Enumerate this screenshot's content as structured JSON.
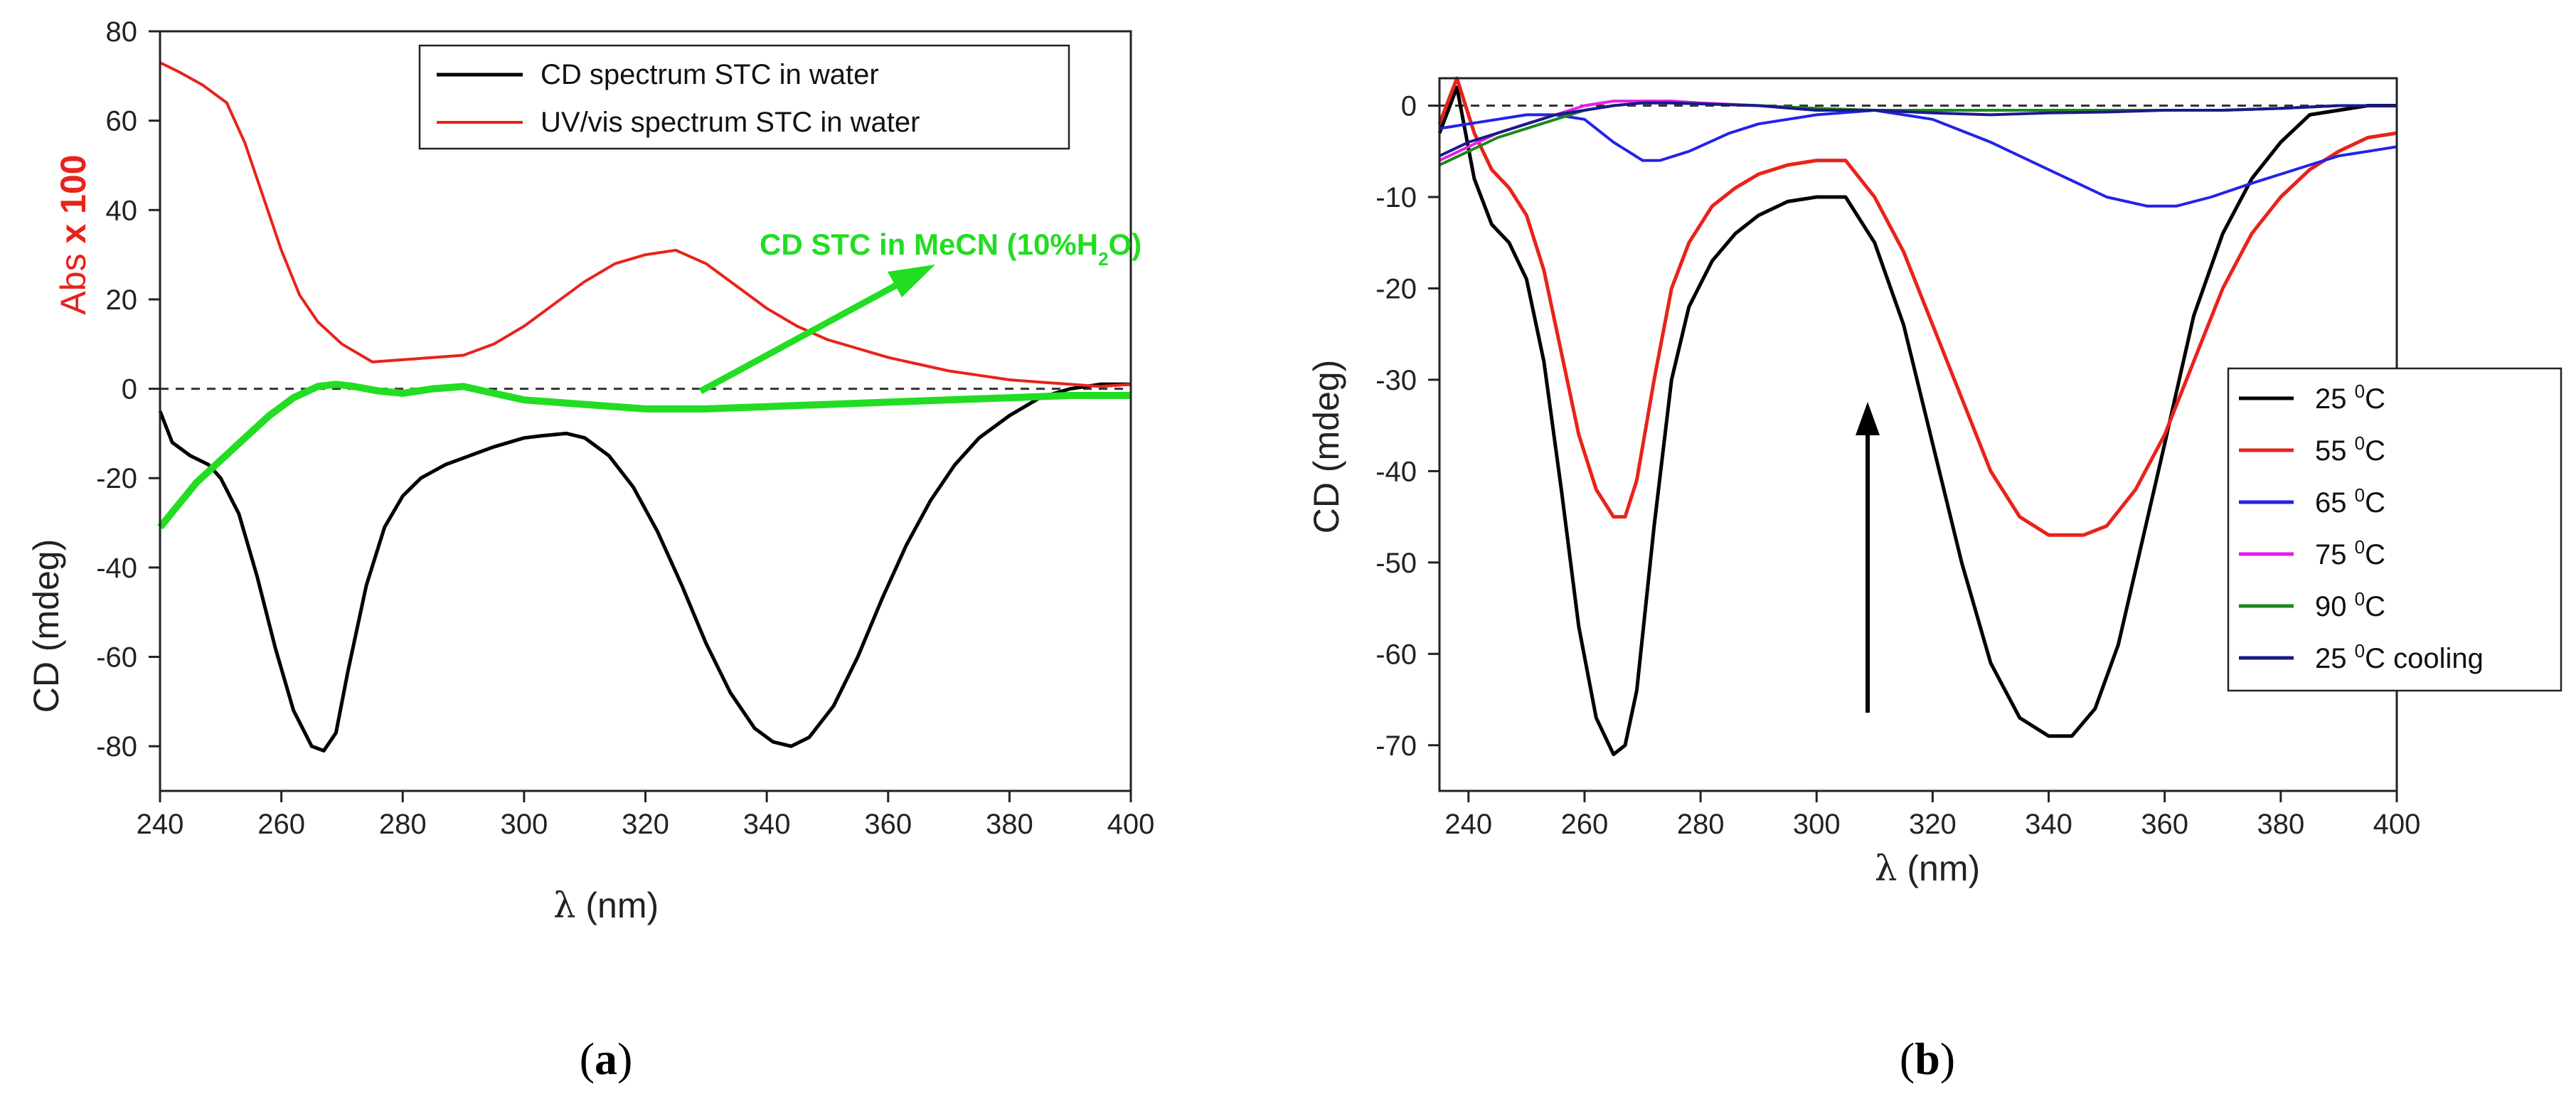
{
  "chart_data": [
    {
      "type": "line",
      "panel": "a",
      "panel_label_open": "(",
      "panel_label_letter": "a",
      "panel_label_close": ")",
      "xlabel_greek": "λ",
      "xlabel_unit": " (nm)",
      "ylabel_bottom": "CD (mdeg)",
      "ylabel_top_prefix": "Abs ",
      "ylabel_top_suffix": "x 100",
      "xlim": [
        240,
        400
      ],
      "ylim": [
        -90,
        80
      ],
      "xticks": [
        "240",
        "260",
        "280",
        "300",
        "320",
        "340",
        "360",
        "380",
        "400"
      ],
      "yticks": [
        "80",
        "60",
        "40",
        "20",
        "0",
        "-20",
        "-40",
        "-60",
        "-80"
      ],
      "legend_position": "top-right",
      "annotation": {
        "text_before": "CD STC in MeCN (10%H",
        "text_sub": "2",
        "text_after": "O)",
        "color": "#22dd22"
      },
      "series": [
        {
          "name": "CD spectrum STC in water",
          "color": "#000000",
          "x": [
            240,
            242,
            245,
            248,
            250,
            253,
            256,
            259,
            262,
            265,
            267,
            269,
            271,
            274,
            277,
            280,
            283,
            287,
            291,
            295,
            300,
            303,
            307,
            310,
            314,
            318,
            322,
            326,
            330,
            334,
            338,
            341,
            344,
            347,
            351,
            355,
            359,
            363,
            367,
            371,
            375,
            380,
            385,
            390,
            395,
            400
          ],
          "values": [
            -5,
            -12,
            -15,
            -17,
            -20,
            -28,
            -42,
            -58,
            -72,
            -80,
            -81,
            -77,
            -63,
            -44,
            -31,
            -24,
            -20,
            -17,
            -15,
            -13,
            -11,
            -10.5,
            -10,
            -11,
            -15,
            -22,
            -32,
            -44,
            -57,
            -68,
            -76,
            -79,
            -80,
            -78,
            -71,
            -60,
            -47,
            -35,
            -25,
            -17,
            -11,
            -6,
            -2,
            0,
            1,
            1
          ]
        },
        {
          "name": "UV/vis spectrum STC in water",
          "color": "#e8231b",
          "x": [
            240,
            243,
            247,
            251,
            254,
            257,
            260,
            263,
            266,
            270,
            275,
            280,
            285,
            290,
            295,
            300,
            305,
            310,
            315,
            320,
            325,
            330,
            335,
            340,
            345,
            350,
            355,
            360,
            365,
            370,
            375,
            380,
            385,
            390,
            395,
            400
          ],
          "values": [
            73,
            71,
            68,
            64,
            55,
            43,
            31,
            21,
            15,
            10,
            6,
            6.5,
            7,
            7.5,
            10,
            14,
            19,
            24,
            28,
            30,
            31,
            28,
            23,
            18,
            14,
            11,
            9,
            7,
            5.5,
            4,
            3,
            2,
            1.5,
            1,
            0.5,
            1
          ]
        },
        {
          "name": "CD STC in MeCN (10%H2O)",
          "color": "#22dd22",
          "x": [
            240,
            243,
            246,
            250,
            254,
            258,
            262,
            266,
            269,
            272,
            276,
            280,
            285,
            290,
            295,
            300,
            310,
            320,
            330,
            340,
            350,
            360,
            370,
            380,
            390,
            400
          ],
          "values": [
            -31,
            -26,
            -21,
            -16,
            -11,
            -6,
            -2,
            0.5,
            1,
            0.5,
            -0.5,
            -1,
            0,
            0.5,
            -1,
            -2.5,
            -3.5,
            -4.5,
            -4.5,
            -4,
            -3.5,
            -3,
            -2.5,
            -2,
            -1.5,
            -1.5
          ]
        }
      ]
    },
    {
      "type": "line",
      "panel": "b",
      "panel_label_open": "(",
      "panel_label_letter": "b",
      "panel_label_close": ")",
      "xlabel_greek": "λ",
      "xlabel_unit": " (nm)",
      "ylabel": "CD (mdeg)",
      "xlim": [
        235,
        400
      ],
      "ylim": [
        -75,
        3
      ],
      "xticks": [
        "240",
        "260",
        "280",
        "300",
        "320",
        "340",
        "360",
        "380",
        "400"
      ],
      "yticks": [
        "0",
        "-10",
        "-20",
        "-30",
        "-40",
        "-50",
        "-60",
        "-70"
      ],
      "legend_position": "bottom-right",
      "annotation": {
        "arrow": "up",
        "meaning": "increasing temperature"
      },
      "series": [
        {
          "name_num": "25 ",
          "name_sup": "0",
          "name_unit": "C",
          "color": "#000000",
          "x": [
            235,
            238,
            241,
            244,
            247,
            250,
            253,
            256,
            259,
            262,
            265,
            267,
            269,
            272,
            275,
            278,
            282,
            286,
            290,
            295,
            300,
            305,
            310,
            315,
            320,
            325,
            330,
            335,
            340,
            344,
            348,
            352,
            356,
            360,
            365,
            370,
            375,
            380,
            385,
            390,
            395,
            400
          ],
          "values": [
            -3,
            2,
            -8,
            -13,
            -15,
            -19,
            -28,
            -42,
            -57,
            -67,
            -71,
            -70,
            -64,
            -46,
            -30,
            -22,
            -17,
            -14,
            -12,
            -10.5,
            -10,
            -10,
            -15,
            -24,
            -37,
            -50,
            -61,
            -67,
            -69,
            -69,
            -66,
            -59,
            -48,
            -37,
            -23,
            -14,
            -8,
            -4,
            -1,
            -0.5,
            0,
            0
          ]
        },
        {
          "name_num": "55 ",
          "name_sup": "0",
          "name_unit": "C",
          "color": "#e8231b",
          "x": [
            235,
            238,
            241,
            244,
            247,
            250,
            253,
            256,
            259,
            262,
            265,
            267,
            269,
            272,
            275,
            278,
            282,
            286,
            290,
            295,
            300,
            305,
            310,
            315,
            320,
            325,
            330,
            335,
            340,
            346,
            350,
            355,
            360,
            365,
            370,
            375,
            380,
            385,
            390,
            395,
            400
          ],
          "values": [
            -2,
            3,
            -3,
            -7,
            -9,
            -12,
            -18,
            -27,
            -36,
            -42,
            -45,
            -45,
            -41,
            -30,
            -20,
            -15,
            -11,
            -9,
            -7.5,
            -6.5,
            -6,
            -6,
            -10,
            -16,
            -24,
            -32,
            -40,
            -45,
            -47,
            -47,
            -46,
            -42,
            -36,
            -28,
            -20,
            -14,
            -10,
            -7,
            -5,
            -3.5,
            -3
          ]
        },
        {
          "name_num": "65 ",
          "name_sup": "0",
          "name_unit": "C",
          "color": "#2323e8",
          "x": [
            235,
            240,
            245,
            250,
            255,
            260,
            265,
            270,
            273,
            278,
            285,
            290,
            300,
            310,
            320,
            330,
            340,
            345,
            350,
            357,
            362,
            368,
            375,
            380,
            385,
            390,
            395,
            400
          ],
          "values": [
            -2.5,
            -2,
            -1.5,
            -1,
            -1,
            -1.5,
            -4,
            -6,
            -6,
            -5,
            -3,
            -2,
            -1,
            -0.5,
            -1.5,
            -4,
            -7,
            -8.5,
            -10,
            -11,
            -11,
            -10,
            -8.5,
            -7.5,
            -6.5,
            -5.5,
            -5,
            -4.5
          ]
        },
        {
          "name_num": "75 ",
          "name_sup": "0",
          "name_unit": "C",
          "color": "#e81ce8",
          "x": [
            235,
            240,
            245,
            250,
            255,
            260,
            265,
            270,
            275,
            280,
            290,
            300,
            310,
            320,
            330,
            340,
            350,
            360,
            370,
            380,
            390,
            400
          ],
          "values": [
            -6,
            -4.5,
            -3,
            -2,
            -1,
            0,
            0.5,
            0.5,
            0.5,
            0.3,
            0,
            -0.5,
            -0.5,
            -0.5,
            -0.5,
            -0.5,
            -0.5,
            -0.5,
            -0.5,
            -0.3,
            0,
            0
          ]
        },
        {
          "name_num": "90 ",
          "name_sup": "0",
          "name_unit": "C",
          "color": "#1a8a1a",
          "x": [
            235,
            240,
            245,
            250,
            255,
            260,
            265,
            270,
            275,
            280,
            290,
            300,
            310,
            320,
            330,
            340,
            350,
            360,
            370,
            380,
            390,
            400
          ],
          "values": [
            -6.5,
            -5,
            -3.5,
            -2.5,
            -1.5,
            -0.5,
            0,
            0.3,
            0.3,
            0.2,
            0,
            -0.3,
            -0.5,
            -0.5,
            -0.5,
            -0.5,
            -0.5,
            -0.5,
            -0.5,
            -0.3,
            0,
            0
          ]
        },
        {
          "name_num": "25 ",
          "name_sup": "0",
          "name_unit": "C cooling",
          "color": "#1a1a8a",
          "x": [
            235,
            240,
            245,
            250,
            255,
            260,
            265,
            270,
            275,
            280,
            290,
            300,
            310,
            320,
            330,
            340,
            350,
            360,
            370,
            380,
            390,
            400
          ],
          "values": [
            -5.5,
            -4,
            -3,
            -2,
            -1,
            -0.5,
            0,
            0.3,
            0.3,
            0.2,
            0,
            -0.5,
            -0.5,
            -0.8,
            -1,
            -0.8,
            -0.7,
            -0.5,
            -0.5,
            -0.3,
            0,
            0
          ]
        }
      ]
    }
  ]
}
